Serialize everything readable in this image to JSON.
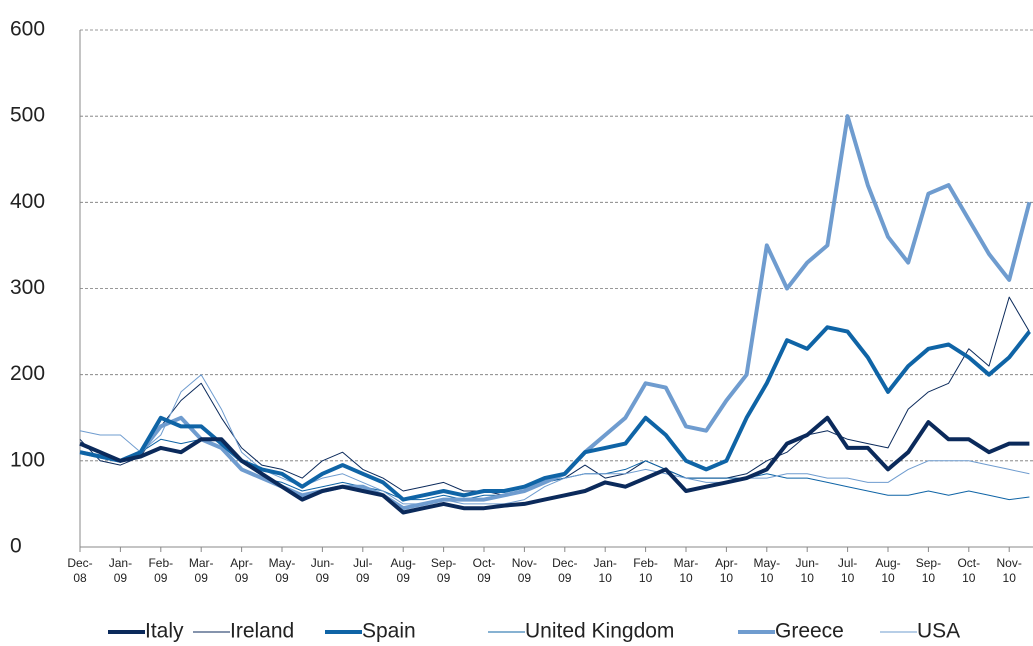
{
  "chart_data": {
    "type": "line",
    "categories": [
      "Dec-08",
      null,
      "Jan-09",
      null,
      "Feb-09",
      null,
      "Mar-09",
      null,
      "Apr-09",
      null,
      "May-09",
      null,
      "Jun-09",
      null,
      "Jul-09",
      null,
      "Aug-09",
      null,
      "Sep-09",
      null,
      "Oct-09",
      null,
      "Nov-09",
      null,
      "Dec-09",
      null,
      "Jan-10",
      null,
      "Feb-10",
      null,
      "Mar-10",
      null,
      "Apr-10",
      null,
      "May-10",
      null,
      "Jun-10",
      null,
      "Jul-10",
      null,
      "Aug-10",
      null,
      "Sep-10",
      null,
      "Oct-10",
      null,
      "Nov-10",
      null
    ],
    "series": [
      {
        "name": "Italy",
        "color": "#0b2a5b",
        "line_width": 4,
        "values": [
          120,
          110,
          100,
          105,
          115,
          110,
          125,
          125,
          100,
          85,
          70,
          55,
          65,
          70,
          65,
          60,
          40,
          45,
          50,
          45,
          45,
          48,
          50,
          55,
          60,
          65,
          75,
          70,
          80,
          90,
          65,
          70,
          75,
          80,
          90,
          120,
          130,
          150,
          115,
          115,
          90,
          110,
          145,
          125,
          125,
          110,
          120,
          120
        ]
      },
      {
        "name": "Ireland",
        "color": "#0b2a5b",
        "line_width": 1,
        "values": [
          125,
          100,
          95,
          105,
          140,
          170,
          190,
          150,
          115,
          95,
          90,
          80,
          100,
          110,
          90,
          80,
          65,
          70,
          75,
          65,
          65,
          60,
          65,
          75,
          80,
          95,
          80,
          85,
          100,
          90,
          80,
          80,
          80,
          85,
          100,
          110,
          130,
          135,
          125,
          120,
          115,
          160,
          180,
          190,
          230,
          210,
          290,
          250
        ]
      },
      {
        "name": "Spain",
        "color": "#0f64a6",
        "line_width": 4,
        "values": [
          110,
          105,
          100,
          110,
          150,
          140,
          140,
          120,
          100,
          90,
          85,
          70,
          85,
          95,
          85,
          75,
          55,
          60,
          65,
          60,
          65,
          65,
          70,
          80,
          85,
          110,
          115,
          120,
          150,
          130,
          100,
          90,
          100,
          150,
          190,
          240,
          230,
          255,
          250,
          220,
          180,
          210,
          230,
          235,
          220,
          200,
          220,
          250
        ]
      },
      {
        "name": "United Kingdom",
        "color": "#0f64a6",
        "line_width": 1,
        "values": [
          110,
          105,
          100,
          110,
          125,
          120,
          125,
          115,
          90,
          80,
          75,
          65,
          70,
          75,
          70,
          65,
          55,
          55,
          60,
          55,
          60,
          60,
          65,
          75,
          80,
          85,
          85,
          90,
          100,
          90,
          80,
          80,
          80,
          80,
          85,
          80,
          80,
          75,
          70,
          65,
          60,
          60,
          65,
          60,
          65,
          60,
          55,
          58
        ]
      },
      {
        "name": "Greece",
        "color": "#6f9ccf",
        "line_width": 4,
        "values": [
          110,
          105,
          100,
          110,
          140,
          150,
          125,
          115,
          90,
          80,
          70,
          60,
          65,
          70,
          70,
          60,
          45,
          50,
          55,
          55,
          55,
          60,
          65,
          75,
          85,
          110,
          130,
          150,
          190,
          185,
          140,
          135,
          170,
          200,
          350,
          300,
          330,
          350,
          500,
          420,
          360,
          330,
          410,
          420,
          380,
          340,
          310,
          400
        ]
      },
      {
        "name": "USA",
        "color": "#6f9ccf",
        "line_width": 1,
        "values": [
          135,
          130,
          130,
          110,
          130,
          180,
          200,
          160,
          110,
          90,
          80,
          70,
          80,
          85,
          75,
          65,
          50,
          50,
          55,
          50,
          50,
          50,
          55,
          70,
          80,
          85,
          85,
          85,
          90,
          85,
          80,
          75,
          75,
          80,
          80,
          85,
          85,
          80,
          80,
          75,
          75,
          90,
          100,
          100,
          100,
          95,
          90,
          85
        ]
      }
    ],
    "ylim": [
      0,
      600
    ],
    "yticks": [
      0,
      100,
      200,
      300,
      400,
      500,
      600
    ],
    "grid": true
  }
}
